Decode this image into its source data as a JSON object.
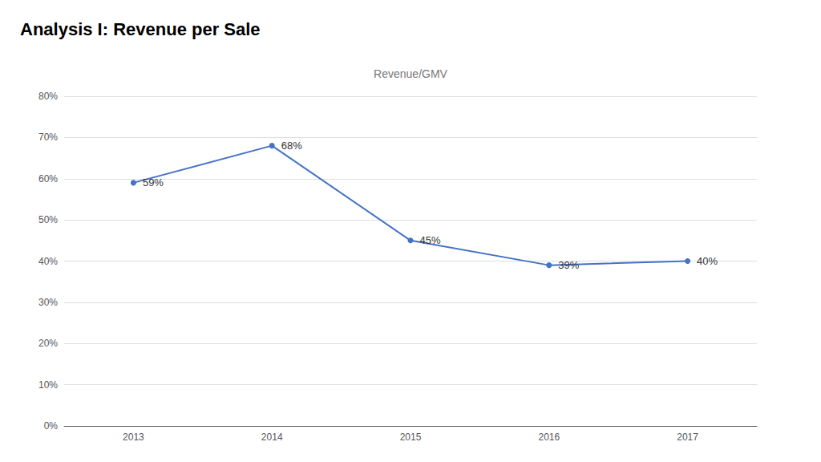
{
  "chart_data": {
    "type": "line",
    "title": "Analysis I: Revenue per Sale",
    "subtitle": "Revenue/GMV",
    "categories": [
      "2013",
      "2014",
      "2015",
      "2016",
      "2017"
    ],
    "values": [
      0.59,
      0.68,
      0.45,
      0.39,
      0.4
    ],
    "value_labels": [
      "59%",
      "68%",
      "45%",
      "39%",
      "40%"
    ],
    "data_labels": true,
    "color": "#4472c4",
    "marker": "circle",
    "ylim": [
      0,
      0.8
    ],
    "yticks": [
      {
        "value": 0.0,
        "label": "0%"
      },
      {
        "value": 0.1,
        "label": "10%"
      },
      {
        "value": 0.2,
        "label": "20%"
      },
      {
        "value": 0.3,
        "label": "30%"
      },
      {
        "value": 0.4,
        "label": "40%"
      },
      {
        "value": 0.5,
        "label": "50%"
      },
      {
        "value": 0.6,
        "label": "60%"
      },
      {
        "value": 0.7,
        "label": "70%"
      },
      {
        "value": 0.8,
        "label": "80%"
      }
    ],
    "grid": true
  }
}
